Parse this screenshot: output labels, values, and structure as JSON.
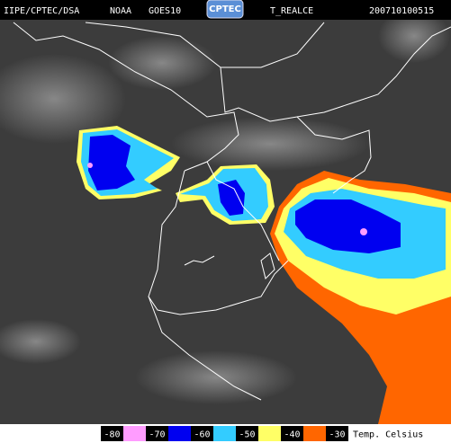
{
  "header": {
    "source": "IIPE/CPTEC/DSA",
    "agency": "NOAA",
    "satellite": "GOES10",
    "logo": "CPTEC",
    "product": "T_REALCE",
    "timestamp": "200710100515"
  },
  "legend": {
    "ticks": [
      -80,
      -70,
      -60,
      -50,
      -40,
      -30
    ],
    "colors": [
      "#ff9cff",
      "#0000f0",
      "#33ccff",
      "#ffff66",
      "#ff6600"
    ],
    "unit": "Temp. Celsius"
  }
}
